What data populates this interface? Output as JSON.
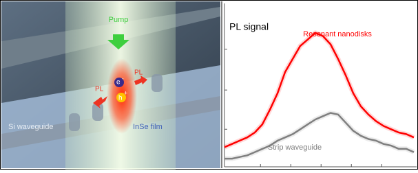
{
  "illustration": {
    "pump": "Pump",
    "pl_left": "PL",
    "pl_right": "PL",
    "electron": "e",
    "electron_sign": "-",
    "hole": "h",
    "hole_sign": "+",
    "waveguide": "Si waveguide",
    "film": "InSe film"
  },
  "chart_data": {
    "type": "line",
    "title": "PL signal",
    "x": [
      0,
      4,
      8,
      12,
      16,
      20,
      24,
      28,
      32,
      36,
      40,
      44,
      48,
      52,
      56,
      60,
      64,
      68,
      72,
      76,
      80,
      84,
      88,
      92,
      96,
      100
    ],
    "series": [
      {
        "name": "Resonant nanodisks",
        "color": "#ff0000",
        "values": [
          0.12,
          0.14,
          0.16,
          0.18,
          0.21,
          0.26,
          0.35,
          0.45,
          0.58,
          0.66,
          0.74,
          0.78,
          0.82,
          0.8,
          0.75,
          0.66,
          0.56,
          0.45,
          0.37,
          0.32,
          0.28,
          0.25,
          0.23,
          0.21,
          0.2,
          0.18
        ]
      },
      {
        "name": "Strip waveguide",
        "color": "#7f7f7f",
        "values": [
          0.05,
          0.05,
          0.06,
          0.07,
          0.09,
          0.11,
          0.13,
          0.16,
          0.18,
          0.2,
          0.23,
          0.26,
          0.29,
          0.31,
          0.33,
          0.32,
          0.27,
          0.22,
          0.19,
          0.17,
          0.16,
          0.14,
          0.13,
          0.11,
          0.11,
          0.09
        ]
      }
    ],
    "xlim": [
      0,
      100
    ],
    "ylim": [
      0,
      1
    ],
    "xticks": [
      19,
      35,
      51,
      67,
      83
    ],
    "yticks": [
      0.23,
      0.47,
      0.72
    ]
  }
}
